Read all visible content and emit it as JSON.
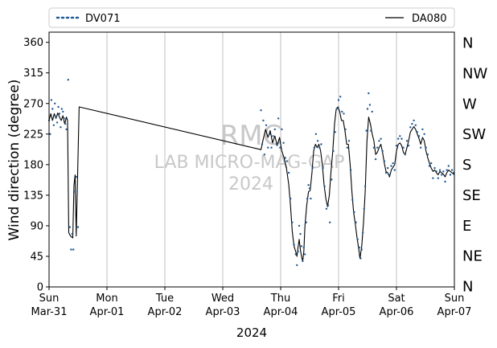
{
  "chart_data": {
    "type": "line",
    "title": "",
    "xlabel": "2024",
    "ylabel": "Wind direction (degree)",
    "ylim": [
      0,
      375
    ],
    "yticks": [
      0,
      45,
      90,
      135,
      180,
      225,
      270,
      315,
      360
    ],
    "x_range": [
      "2024-03-31 00:00",
      "2024-04-07 00:00"
    ],
    "x_ticks": [
      {
        "day": 0,
        "line1": "Sun",
        "line2": "Mar-31"
      },
      {
        "day": 1,
        "line1": "Mon",
        "line2": "Apr-01"
      },
      {
        "day": 2,
        "line1": "Tue",
        "line2": "Apr-02"
      },
      {
        "day": 3,
        "line1": "Wed",
        "line2": "Apr-03"
      },
      {
        "day": 4,
        "line1": "Thu",
        "line2": "Apr-04"
      },
      {
        "day": 5,
        "line1": "Fri",
        "line2": "Apr-05"
      },
      {
        "day": 6,
        "line1": "Sat",
        "line2": "Apr-06"
      },
      {
        "day": 7,
        "line1": "Sun",
        "line2": "Apr-07"
      }
    ],
    "grid": "vertical at day ticks",
    "compass_labels": [
      {
        "value": 0,
        "label": "N"
      },
      {
        "value": 45,
        "label": "NE"
      },
      {
        "value": 90,
        "label": "E"
      },
      {
        "value": 135,
        "label": "SE"
      },
      {
        "value": 180,
        "label": "S"
      },
      {
        "value": 225,
        "label": "SW"
      },
      {
        "value": 270,
        "label": "W"
      },
      {
        "value": 315,
        "label": "NW"
      },
      {
        "value": 360,
        "label": "N"
      }
    ],
    "legend": {
      "placement": "top, above plot",
      "entries": [
        "DV071",
        "DA080"
      ]
    },
    "watermark": [
      "RMC",
      "LAB MICRO-MAG-GAP",
      "2024"
    ],
    "series": [
      {
        "name": "DV071",
        "style": "dots",
        "color": "#1f5a96",
        "points": [
          [
            0.0,
            245
          ],
          [
            0.02,
            225
          ],
          [
            0.04,
            275
          ],
          [
            0.06,
            262
          ],
          [
            0.08,
            238
          ],
          [
            0.1,
            270
          ],
          [
            0.12,
            250
          ],
          [
            0.14,
            242
          ],
          [
            0.16,
            265
          ],
          [
            0.18,
            255
          ],
          [
            0.2,
            235
          ],
          [
            0.22,
            262
          ],
          [
            0.24,
            258
          ],
          [
            0.26,
            248
          ],
          [
            0.28,
            240
          ],
          [
            0.3,
            232
          ],
          [
            0.33,
            305
          ],
          [
            0.36,
            88
          ],
          [
            0.38,
            55
          ],
          [
            0.4,
            78
          ],
          [
            0.42,
            55
          ],
          [
            0.45,
            140
          ],
          [
            0.47,
            162
          ],
          [
            0.5,
            88
          ],
          [
            3.66,
            260
          ],
          [
            3.68,
            210
          ],
          [
            3.7,
            245
          ],
          [
            3.72,
            195
          ],
          [
            3.75,
            238
          ],
          [
            3.78,
            205
          ],
          [
            3.81,
            225
          ],
          [
            3.84,
            205
          ],
          [
            3.87,
            222
          ],
          [
            3.9,
            232
          ],
          [
            3.93,
            210
          ],
          [
            3.96,
            248
          ],
          [
            3.99,
            205
          ],
          [
            4.02,
            232
          ],
          [
            4.05,
            212
          ],
          [
            4.08,
            190
          ],
          [
            4.11,
            185
          ],
          [
            4.14,
            168
          ],
          [
            4.17,
            130
          ],
          [
            4.2,
            95
          ],
          [
            4.23,
            62
          ],
          [
            4.26,
            48
          ],
          [
            4.28,
            32
          ],
          [
            4.3,
            52
          ],
          [
            4.32,
            90
          ],
          [
            4.34,
            78
          ],
          [
            4.36,
            60
          ],
          [
            4.38,
            38
          ],
          [
            4.4,
            58
          ],
          [
            4.42,
            48
          ],
          [
            4.44,
            95
          ],
          [
            4.46,
            130
          ],
          [
            4.48,
            150
          ],
          [
            4.5,
            145
          ],
          [
            4.52,
            130
          ],
          [
            4.55,
            175
          ],
          [
            4.58,
            205
          ],
          [
            4.61,
            225
          ],
          [
            4.64,
            215
          ],
          [
            4.67,
            205
          ],
          [
            4.7,
            210
          ],
          [
            4.73,
            175
          ],
          [
            4.76,
            148
          ],
          [
            4.79,
            115
          ],
          [
            4.82,
            120
          ],
          [
            4.85,
            95
          ],
          [
            4.88,
            158
          ],
          [
            4.91,
            200
          ],
          [
            4.94,
            228
          ],
          [
            4.97,
            262
          ],
          [
            5.0,
            275
          ],
          [
            5.03,
            280
          ],
          [
            5.06,
            258
          ],
          [
            5.09,
            255
          ],
          [
            5.12,
            232
          ],
          [
            5.15,
            205
          ],
          [
            5.18,
            215
          ],
          [
            5.21,
            172
          ],
          [
            5.24,
            128
          ],
          [
            5.27,
            110
          ],
          [
            5.3,
            95
          ],
          [
            5.33,
            70
          ],
          [
            5.36,
            58
          ],
          [
            5.38,
            42
          ],
          [
            5.4,
            55
          ],
          [
            5.42,
            80
          ],
          [
            5.44,
            115
          ],
          [
            5.46,
            148
          ],
          [
            5.48,
            230
          ],
          [
            5.5,
            262
          ],
          [
            5.52,
            285
          ],
          [
            5.54,
            268
          ],
          [
            5.56,
            230
          ],
          [
            5.58,
            258
          ],
          [
            5.61,
            205
          ],
          [
            5.64,
            188
          ],
          [
            5.67,
            205
          ],
          [
            5.7,
            215
          ],
          [
            5.73,
            218
          ],
          [
            5.76,
            200
          ],
          [
            5.79,
            185
          ],
          [
            5.82,
            168
          ],
          [
            5.85,
            175
          ],
          [
            5.88,
            165
          ],
          [
            5.91,
            178
          ],
          [
            5.94,
            182
          ],
          [
            5.97,
            172
          ],
          [
            6.0,
            208
          ],
          [
            6.03,
            218
          ],
          [
            6.06,
            222
          ],
          [
            6.09,
            218
          ],
          [
            6.12,
            205
          ],
          [
            6.15,
            195
          ],
          [
            6.18,
            215
          ],
          [
            6.21,
            208
          ],
          [
            6.24,
            235
          ],
          [
            6.27,
            240
          ],
          [
            6.3,
            245
          ],
          [
            6.33,
            238
          ],
          [
            6.36,
            228
          ],
          [
            6.39,
            222
          ],
          [
            6.42,
            205
          ],
          [
            6.45,
            232
          ],
          [
            6.48,
            225
          ],
          [
            6.51,
            205
          ],
          [
            6.54,
            195
          ],
          [
            6.57,
            178
          ],
          [
            6.6,
            182
          ],
          [
            6.63,
            160
          ],
          [
            6.66,
            175
          ],
          [
            6.69,
            170
          ],
          [
            6.72,
            160
          ],
          [
            6.75,
            172
          ],
          [
            6.78,
            165
          ],
          [
            6.81,
            170
          ],
          [
            6.84,
            155
          ],
          [
            6.87,
            172
          ],
          [
            6.9,
            178
          ],
          [
            6.93,
            165
          ],
          [
            6.96,
            172
          ],
          [
            6.99,
            168
          ]
        ]
      },
      {
        "name": "DA080",
        "style": "line",
        "color": "#000000",
        "points": [
          [
            0.0,
            245
          ],
          [
            0.03,
            255
          ],
          [
            0.06,
            245
          ],
          [
            0.09,
            255
          ],
          [
            0.12,
            248
          ],
          [
            0.15,
            256
          ],
          [
            0.18,
            250
          ],
          [
            0.21,
            245
          ],
          [
            0.24,
            252
          ],
          [
            0.27,
            240
          ],
          [
            0.3,
            250
          ],
          [
            0.32,
            245
          ],
          [
            0.34,
            80
          ],
          [
            0.37,
            75
          ],
          [
            0.41,
            72
          ],
          [
            0.43,
            150
          ],
          [
            0.45,
            165
          ],
          [
            0.47,
            75
          ],
          [
            0.52,
            265
          ],
          [
            3.66,
            202
          ],
          [
            3.7,
            218
          ],
          [
            3.74,
            232
          ],
          [
            3.78,
            220
          ],
          [
            3.82,
            230
          ],
          [
            3.86,
            212
          ],
          [
            3.9,
            222
          ],
          [
            3.94,
            208
          ],
          [
            3.98,
            220
          ],
          [
            4.02,
            200
          ],
          [
            4.06,
            190
          ],
          [
            4.1,
            175
          ],
          [
            4.14,
            150
          ],
          [
            4.17,
            120
          ],
          [
            4.2,
            82
          ],
          [
            4.23,
            60
          ],
          [
            4.26,
            52
          ],
          [
            4.28,
            45
          ],
          [
            4.3,
            58
          ],
          [
            4.32,
            70
          ],
          [
            4.34,
            55
          ],
          [
            4.36,
            45
          ],
          [
            4.38,
            38
          ],
          [
            4.4,
            52
          ],
          [
            4.42,
            90
          ],
          [
            4.45,
            120
          ],
          [
            4.48,
            140
          ],
          [
            4.51,
            142
          ],
          [
            4.54,
            168
          ],
          [
            4.57,
            200
          ],
          [
            4.6,
            210
          ],
          [
            4.63,
            205
          ],
          [
            4.66,
            210
          ],
          [
            4.69,
            200
          ],
          [
            4.72,
            180
          ],
          [
            4.75,
            150
          ],
          [
            4.78,
            130
          ],
          [
            4.81,
            118
          ],
          [
            4.84,
            135
          ],
          [
            4.87,
            170
          ],
          [
            4.9,
            200
          ],
          [
            4.93,
            240
          ],
          [
            4.96,
            262
          ],
          [
            4.99,
            265
          ],
          [
            5.02,
            258
          ],
          [
            5.05,
            245
          ],
          [
            5.08,
            245
          ],
          [
            5.11,
            230
          ],
          [
            5.14,
            210
          ],
          [
            5.17,
            210
          ],
          [
            5.2,
            180
          ],
          [
            5.23,
            140
          ],
          [
            5.26,
            110
          ],
          [
            5.29,
            92
          ],
          [
            5.32,
            72
          ],
          [
            5.35,
            55
          ],
          [
            5.37,
            42
          ],
          [
            5.4,
            60
          ],
          [
            5.43,
            95
          ],
          [
            5.46,
            140
          ],
          [
            5.49,
            215
          ],
          [
            5.52,
            250
          ],
          [
            5.55,
            240
          ],
          [
            5.58,
            225
          ],
          [
            5.61,
            215
          ],
          [
            5.64,
            195
          ],
          [
            5.67,
            198
          ],
          [
            5.7,
            205
          ],
          [
            5.73,
            210
          ],
          [
            5.76,
            198
          ],
          [
            5.79,
            182
          ],
          [
            5.82,
            170
          ],
          [
            5.85,
            168
          ],
          [
            5.88,
            162
          ],
          [
            5.91,
            172
          ],
          [
            5.94,
            176
          ],
          [
            5.97,
            180
          ],
          [
            6.0,
            200
          ],
          [
            6.03,
            210
          ],
          [
            6.06,
            212
          ],
          [
            6.09,
            208
          ],
          [
            6.12,
            198
          ],
          [
            6.15,
            195
          ],
          [
            6.18,
            205
          ],
          [
            6.21,
            215
          ],
          [
            6.24,
            228
          ],
          [
            6.27,
            232
          ],
          [
            6.3,
            236
          ],
          [
            6.33,
            232
          ],
          [
            6.36,
            225
          ],
          [
            6.39,
            218
          ],
          [
            6.42,
            210
          ],
          [
            6.45,
            220
          ],
          [
            6.48,
            215
          ],
          [
            6.51,
            200
          ],
          [
            6.54,
            190
          ],
          [
            6.57,
            182
          ],
          [
            6.6,
            175
          ],
          [
            6.63,
            170
          ],
          [
            6.66,
            172
          ],
          [
            6.69,
            168
          ],
          [
            6.72,
            165
          ],
          [
            6.75,
            170
          ],
          [
            6.78,
            168
          ],
          [
            6.81,
            166
          ],
          [
            6.84,
            162
          ],
          [
            6.87,
            168
          ],
          [
            6.9,
            172
          ],
          [
            6.93,
            170
          ],
          [
            6.96,
            168
          ],
          [
            7.0,
            165
          ]
        ]
      }
    ]
  }
}
